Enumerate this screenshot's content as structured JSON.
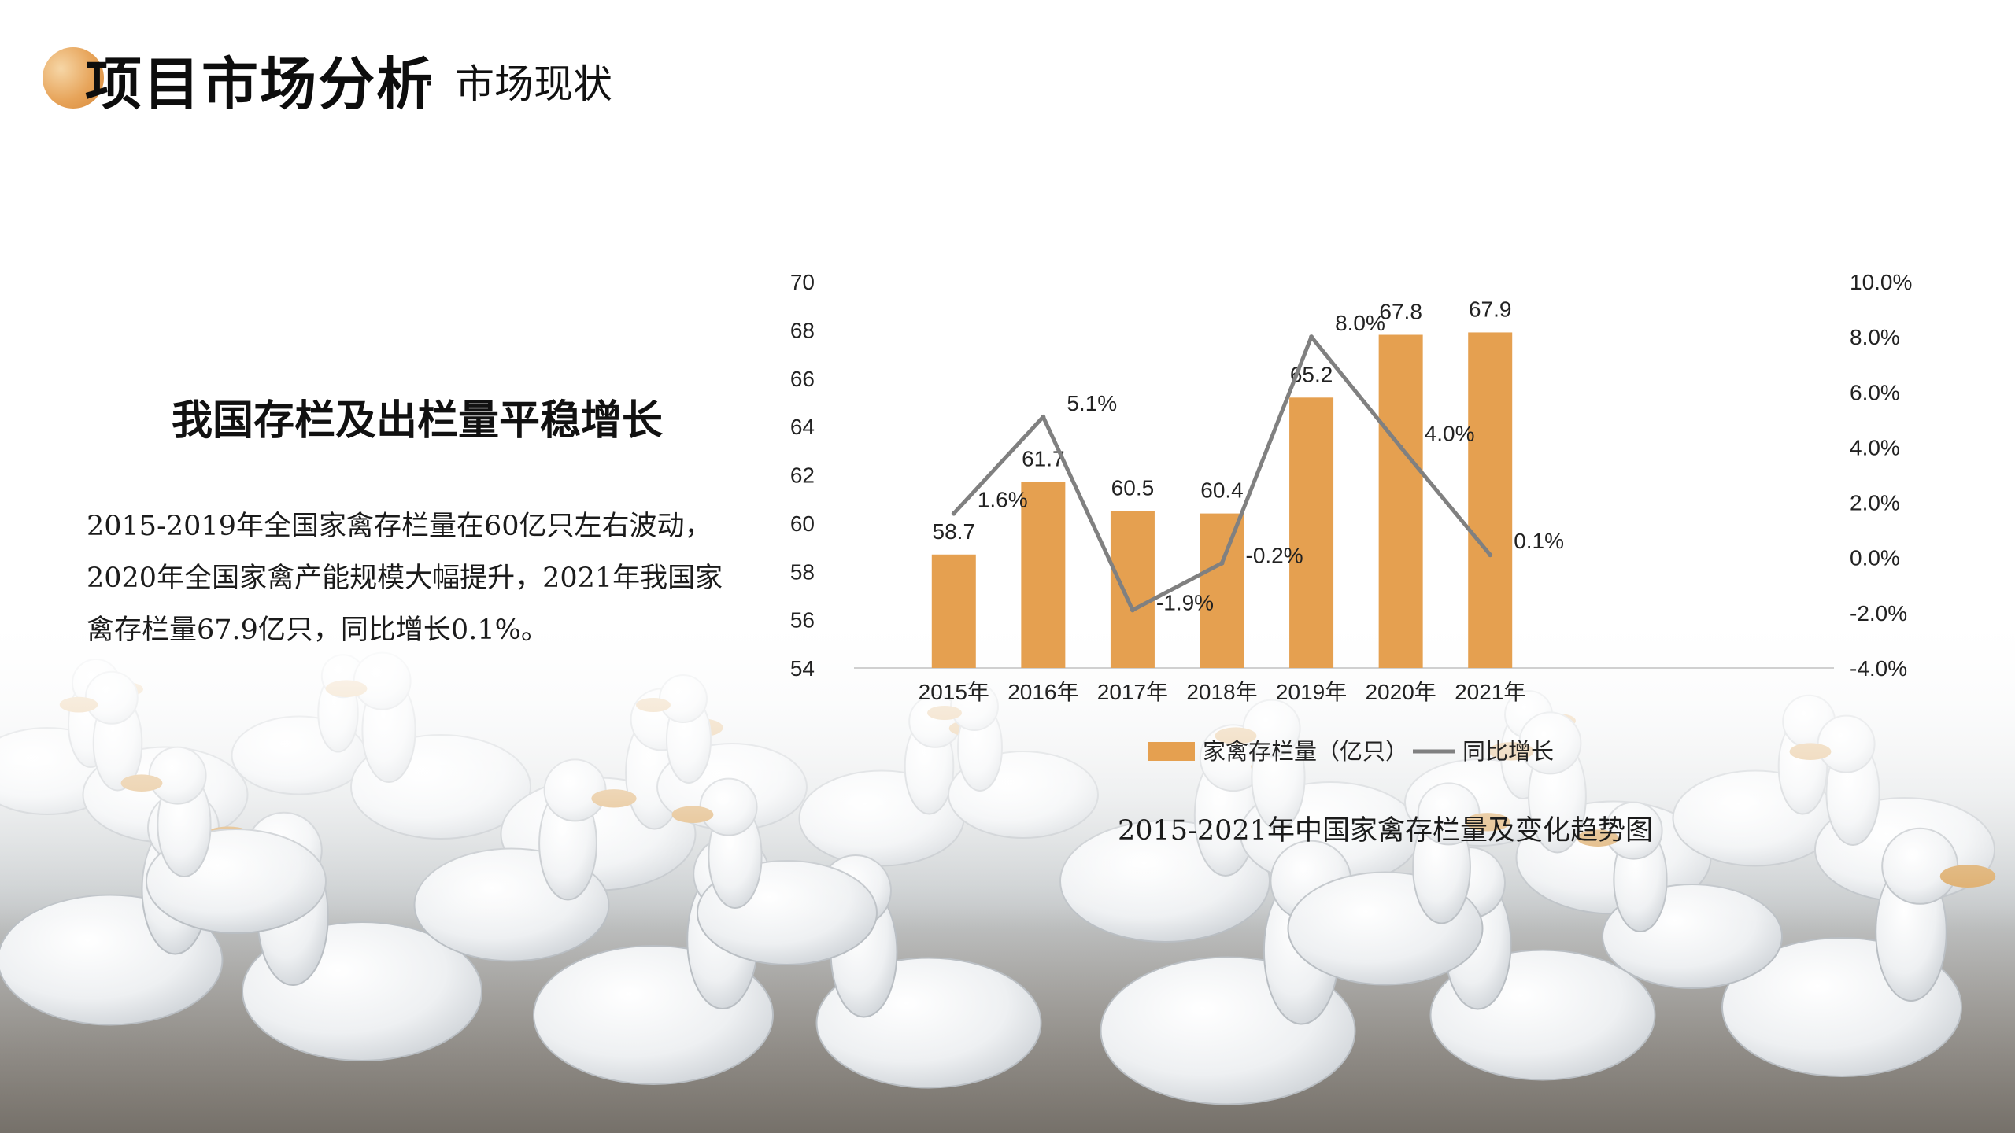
{
  "header": {
    "title": "项目市场分析",
    "separator": "·",
    "subtitle": "市场现状"
  },
  "left": {
    "headline": "我国存栏及出栏量平稳增长",
    "body": "2015-2019年全国家禽存栏量在60亿只左右波动，2020年全国家禽产能规模大幅提升，2021年我国家禽存栏量67.9亿只，同比增长0.1%。"
  },
  "chart_caption": "2015-2021年中国家禽存栏量及变化趋势图",
  "colors": {
    "bar": "#E5A050",
    "line": "#808080",
    "accent": "#E7A45A"
  },
  "chart_data": {
    "type": "bar",
    "categories": [
      "2015年",
      "2016年",
      "2017年",
      "2018年",
      "2019年",
      "2020年",
      "2021年"
    ],
    "series": [
      {
        "name": "家禽存栏量（亿只）",
        "type": "bar",
        "axis": "left",
        "values": [
          58.7,
          61.7,
          60.5,
          60.4,
          65.2,
          67.8,
          67.9
        ],
        "labels": [
          "58.7",
          "61.7",
          "60.5",
          "60.4",
          "65.2",
          "67.8",
          "67.9"
        ]
      },
      {
        "name": "同比增长",
        "type": "line",
        "axis": "right",
        "values": [
          1.6,
          5.1,
          -1.9,
          -0.2,
          8.0,
          4.0,
          0.1
        ],
        "labels": [
          "1.6%",
          "5.1%",
          "-1.9%",
          "-0.2%",
          "8.0%",
          "4.0%",
          "0.1%"
        ]
      }
    ],
    "y_left": {
      "range": [
        54,
        70
      ],
      "ticks": [
        "54",
        "56",
        "58",
        "60",
        "62",
        "64",
        "66",
        "68",
        "70"
      ]
    },
    "y_right": {
      "range": [
        -4.0,
        10.0
      ],
      "ticks": [
        "-4.0%",
        "-2.0%",
        "0.0%",
        "2.0%",
        "4.0%",
        "6.0%",
        "8.0%",
        "10.0%"
      ]
    },
    "grid": false,
    "legend_position": "bottom"
  }
}
